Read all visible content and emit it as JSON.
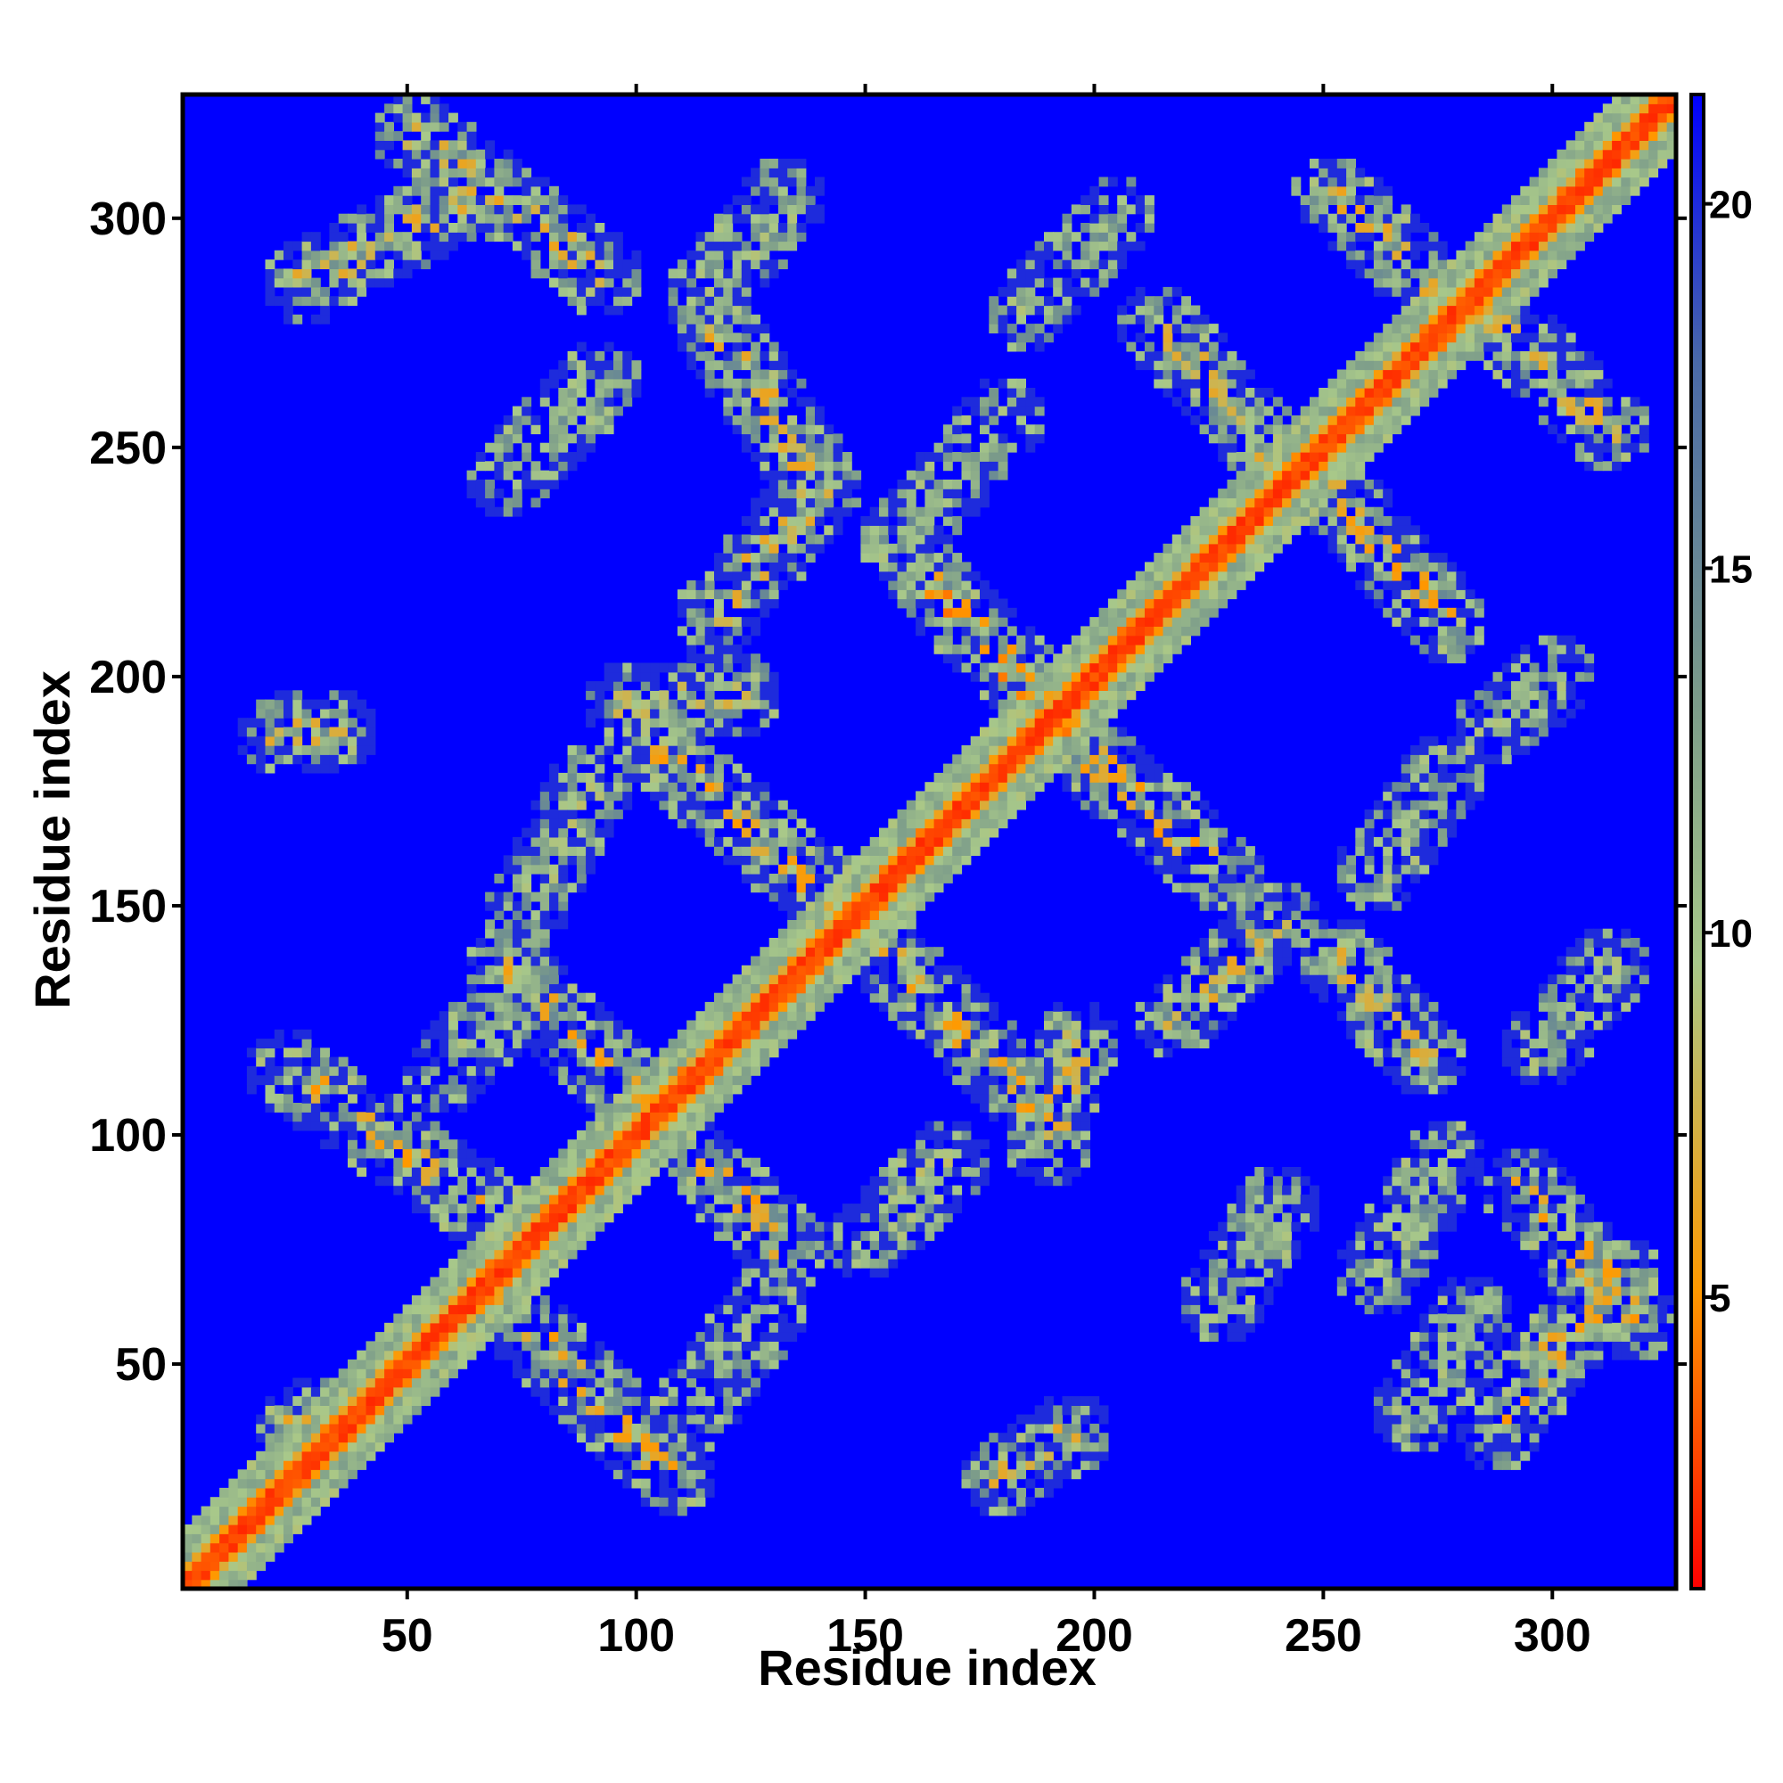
{
  "chart_data": {
    "type": "heatmap",
    "subtype": "contact-map",
    "xlabel": "Residue index",
    "ylabel": "Residue index",
    "x_range": [
      1,
      327
    ],
    "y_range": [
      1,
      327
    ],
    "x_ticks": [
      50,
      100,
      150,
      200,
      250,
      300
    ],
    "y_ticks": [
      50,
      100,
      150,
      200,
      250,
      300
    ],
    "x_tick_labels": [
      "50",
      "100",
      "150",
      "200",
      "250",
      "300"
    ],
    "y_tick_labels": [
      "50",
      "100",
      "150",
      "200",
      "250",
      "300"
    ],
    "colorbar": {
      "range": [
        1,
        21.5
      ],
      "ticks": [
        5,
        10,
        15,
        20
      ],
      "tick_labels": [
        "5",
        "10",
        "15",
        "20"
      ],
      "colors": [
        "#ff0000",
        "#ff4000",
        "#ff9900",
        "#a8c88a",
        "#7a9a8a",
        "#4a6aa8",
        "#0000ff"
      ]
    },
    "background_value": 21.5,
    "background_color": "#0000ff",
    "diagonal": {
      "from": 1,
      "to": 327,
      "core_value": 2,
      "halo_value": 9
    },
    "contact_bands": [
      {
        "from": [
          28,
          286
        ],
        "to": [
          62,
          304
        ],
        "peak_value": 6
      },
      {
        "from": [
          52,
          318
        ],
        "to": [
          92,
          288
        ],
        "peak_value": 6
      },
      {
        "from": [
          115,
          283
        ],
        "to": [
          132,
          304
        ],
        "peak_value": 9
      },
      {
        "from": [
          72,
          243
        ],
        "to": [
          92,
          265
        ],
        "peak_value": 10
      },
      {
        "from": [
          118,
          275
        ],
        "to": [
          138,
          245
        ],
        "peak_value": 6
      },
      {
        "from": [
          117,
          213
        ],
        "to": [
          140,
          241
        ],
        "peak_value": 6
      },
      {
        "from": [
          98,
          194
        ],
        "to": [
          122,
          196
        ],
        "peak_value": 7
      },
      {
        "from": [
          22,
          187
        ],
        "to": [
          35,
          189
        ],
        "peak_value": 6
      },
      {
        "from": [
          75,
          148
        ],
        "to": [
          90,
          176
        ],
        "peak_value": 8
      },
      {
        "from": [
          58,
          113
        ],
        "to": [
          76,
          133
        ],
        "peak_value": 10
      },
      {
        "from": [
          105,
          184
        ],
        "to": [
          142,
          152
        ],
        "peak_value": 5
      },
      {
        "from": [
          72,
          137
        ],
        "to": [
          103,
          105
        ],
        "peak_value": 5
      },
      {
        "from": [
          24,
          114
        ],
        "to": [
          67,
          84
        ],
        "peak_value": 5
      },
      {
        "from": [
          115,
          94
        ],
        "to": [
          133,
          75
        ],
        "peak_value": 5
      },
      {
        "from": [
          150,
          77
        ],
        "to": [
          168,
          94
        ],
        "peak_value": 8
      },
      {
        "from": [
          112,
          39
        ],
        "to": [
          128,
          62
        ],
        "peak_value": 10
      },
      {
        "from": [
          70,
          65
        ],
        "to": [
          108,
          25
        ],
        "peak_value": 5
      },
      {
        "from": [
          26,
          37
        ],
        "to": [
          40,
          40
        ],
        "peak_value": 6
      },
      {
        "from": [
          180,
          25
        ],
        "to": [
          195,
          35
        ],
        "peak_value": 6
      },
      {
        "from": [
          156,
          138
        ],
        "to": [
          185,
          108
        ],
        "peak_value": 5
      },
      {
        "from": [
          190,
          98
        ],
        "to": [
          196,
          120
        ],
        "peak_value": 6
      },
      {
        "from": [
          163,
          222
        ],
        "to": [
          195,
          188
        ],
        "peak_value": 4
      },
      {
        "from": [
          200,
          182
        ],
        "to": [
          228,
          157
        ],
        "peak_value": 5
      },
      {
        "from": [
          214,
          277
        ],
        "to": [
          240,
          248
        ],
        "peak_value": 6
      },
      {
        "from": [
          252,
          305
        ],
        "to": [
          281,
          279
        ],
        "peak_value": 6
      },
      {
        "from": [
          285,
          280
        ],
        "to": [
          312,
          254
        ],
        "peak_value": 6
      },
      {
        "from": [
          252,
          240
        ],
        "to": [
          277,
          212
        ],
        "peak_value": 5
      },
      {
        "from": [
          218,
          125
        ],
        "to": [
          240,
          147
        ],
        "peak_value": 6
      },
      {
        "from": [
          254,
          138
        ],
        "to": [
          272,
          117
        ],
        "peak_value": 6
      },
      {
        "from": [
          262,
          158
        ],
        "to": [
          276,
          178
        ],
        "peak_value": 9
      },
      {
        "from": [
          288,
          190
        ],
        "to": [
          300,
          200
        ],
        "peak_value": 9
      },
      {
        "from": [
          294,
          88
        ],
        "to": [
          318,
          60
        ],
        "peak_value": 5
      },
      {
        "from": [
          288,
          36
        ],
        "to": [
          314,
          70
        ],
        "peak_value": 5
      },
      {
        "from": [
          298,
          120
        ],
        "to": [
          312,
          136
        ],
        "peak_value": 9
      },
      {
        "from": [
          262,
          70
        ],
        "to": [
          276,
          94
        ],
        "peak_value": 9
      },
      {
        "from": [
          270,
          40
        ],
        "to": [
          282,
          60
        ],
        "peak_value": 10
      },
      {
        "from": [
          228,
          64
        ],
        "to": [
          240,
          84
        ],
        "peak_value": 10
      },
      {
        "from": [
          158,
          230
        ],
        "to": [
          180,
          256
        ],
        "peak_value": 10
      },
      {
        "from": [
          185,
          280
        ],
        "to": [
          205,
          300
        ],
        "peak_value": 10
      }
    ]
  }
}
